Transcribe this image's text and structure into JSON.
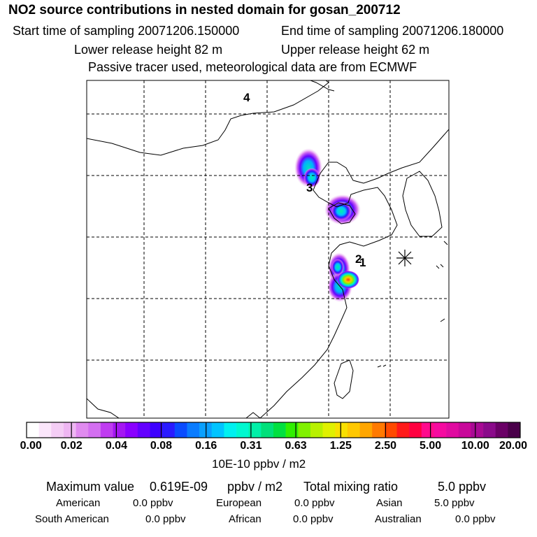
{
  "header": {
    "title": "NO2 source contributions in nested domain for gosan_200712",
    "start_time": "Start time of sampling 20071206.150000",
    "end_time": "End time of sampling 20071206.180000",
    "lower_release": "Lower release height   82 m",
    "upper_release": "Upper release height   62 m",
    "tracer_note": "Passive tracer used, meteorological data are from ECMWF"
  },
  "map": {
    "source_labels": [
      "4",
      "3",
      "2",
      "1"
    ],
    "receptor_icon": "asterisk-receptor-icon"
  },
  "colorbar": {
    "ticks": [
      "0.00",
      "0.02",
      "0.04",
      "0.08",
      "0.16",
      "0.31",
      "0.63",
      "1.25",
      "2.50",
      "5.00",
      "10.00",
      "20.00"
    ],
    "units": "10E-10 ppbv / m2",
    "colors": [
      "#ffffff",
      "#fbe6fb",
      "#f4cdf5",
      "#eeb6f2",
      "#e08bef",
      "#d36ff0",
      "#bf3cf0",
      "#a417f2",
      "#8a00ff",
      "#6400ff",
      "#3d00ff",
      "#2a1aff",
      "#0a4cff",
      "#0a7cff",
      "#0aa0ff",
      "#00c4ff",
      "#00f0f0",
      "#00f8d0",
      "#00f0a8",
      "#00e07a",
      "#00e040",
      "#30ef00",
      "#80f000",
      "#b8f000",
      "#e0f000",
      "#f8e000",
      "#ffc800",
      "#ffa600",
      "#ff7a00",
      "#ff4a00",
      "#ff1a1a",
      "#ff0040",
      "#ff0a8c",
      "#f50aa0",
      "#e00aa0",
      "#c8089a",
      "#a80a94",
      "#8a0a8a",
      "#6a0066",
      "#4a004a"
    ]
  },
  "summary": {
    "max_label": "Maximum value",
    "max_value": "0.619E-09",
    "max_unit": "ppbv / m2",
    "total_label": "Total mixing ratio",
    "total_value": "5.0 ppbv",
    "regions": [
      {
        "name": "American",
        "value": "0.0 ppbv"
      },
      {
        "name": "European",
        "value": "0.0 ppbv"
      },
      {
        "name": "Asian",
        "value": "5.0 ppbv"
      },
      {
        "name": "South American",
        "value": "0.0 ppbv"
      },
      {
        "name": "African",
        "value": "0.0 ppbv"
      },
      {
        "name": "Australian",
        "value": "0.0 ppbv"
      }
    ]
  }
}
